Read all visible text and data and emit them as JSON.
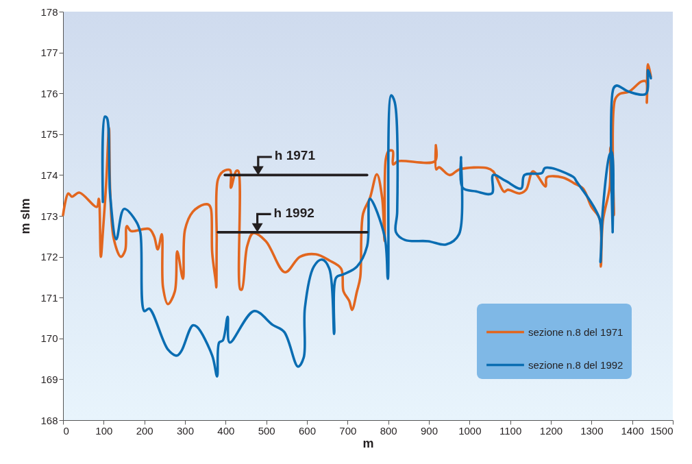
{
  "chart_data": {
    "type": "line",
    "xlabel": "m",
    "ylabel": "m slm",
    "xlim": [
      0,
      1500
    ],
    "ylim": [
      168,
      178
    ],
    "xticks": [
      0,
      100,
      200,
      300,
      400,
      500,
      600,
      700,
      800,
      900,
      1000,
      1100,
      1200,
      1300,
      1400,
      1500
    ],
    "yticks": [
      168,
      169,
      170,
      171,
      172,
      173,
      174,
      175,
      176,
      177,
      178
    ],
    "legend": "bottom right",
    "line_style": "solid",
    "annotations": [
      {
        "text": "h 1971",
        "x": 480,
        "y": 174.0
      },
      {
        "text": "h 1992",
        "x": 478,
        "y": 172.6
      }
    ],
    "series": [
      {
        "name": "sezione n.8 del 1971",
        "color": "#e2661f",
        "x": [
          0,
          13,
          22,
          40,
          83,
          88,
          93,
          98,
          106,
          113,
          116,
          125,
          142,
          153,
          157,
          167,
          212,
          224,
          233,
          243,
          246,
          258,
          275,
          281,
          295,
          300,
          319,
          347,
          359,
          364,
          367,
          376,
          377,
          378,
          381,
          394,
          411,
          413,
          426,
          431,
          436,
          440,
          453,
          468,
          499,
          546,
          583,
          622,
          655,
          684,
          690,
          704,
          711,
          723,
          731,
          738,
          755,
          772,
          785,
          791,
          794,
          801,
          811,
          812,
          824,
          915,
          917,
          918,
          925,
          951,
          976,
          1043,
          1058,
          1085,
          1094,
          1123,
          1139,
          1156,
          1187,
          1190,
          1229,
          1257,
          1279,
          1300,
          1320,
          1323,
          1328,
          1345,
          1347,
          1350,
          1355,
          1358,
          1370,
          1392,
          1423,
          1434,
          1436,
          1439,
          1446
        ],
        "values": [
          173.02,
          173.55,
          173.47,
          173.57,
          173.22,
          173.42,
          172.0,
          172.6,
          173.77,
          175.15,
          173.6,
          172.43,
          172.0,
          172.16,
          172.75,
          172.63,
          172.68,
          172.5,
          172.18,
          172.55,
          171.25,
          170.84,
          171.15,
          172.13,
          171.46,
          172.66,
          173.1,
          173.28,
          173.27,
          173.17,
          172.09,
          171.37,
          171.25,
          172.38,
          173.89,
          174.09,
          174.12,
          173.69,
          174.1,
          174.1,
          171.2,
          171.2,
          172.26,
          172.58,
          172.38,
          171.62,
          172.0,
          172.06,
          171.91,
          171.71,
          171.15,
          170.92,
          170.7,
          171.15,
          171.49,
          173.05,
          173.44,
          174.02,
          173.44,
          172.38,
          174.39,
          174.59,
          174.59,
          174.26,
          174.34,
          174.34,
          174.73,
          174.14,
          174.19,
          174.0,
          174.14,
          174.17,
          174.09,
          173.59,
          173.64,
          173.55,
          173.64,
          174.09,
          173.72,
          173.94,
          173.94,
          173.8,
          173.67,
          173.22,
          172.93,
          171.76,
          172.88,
          173.72,
          174.69,
          174.6,
          173.02,
          175.85,
          175.99,
          176.04,
          176.29,
          176.29,
          175.77,
          176.71,
          176.41
        ]
      },
      {
        "name": "sezione n.8 del 1992",
        "color": "#0a6db2",
        "x": [
          98,
          103,
          108,
          116,
          131,
          150,
          179,
          190,
          200,
          212,
          258,
          280,
          291,
          319,
          330,
          367,
          379,
          384,
          393,
          405,
          410,
          470,
          516,
          544,
          578,
          592,
          595,
          617,
          637,
          655,
          667,
          672,
          690,
          723,
          748,
          755,
          791,
          799,
          807,
          816,
          822,
          819,
          841,
          898,
          942,
          974,
          979,
          983,
          1016,
          1055,
          1058,
          1088,
          1127,
          1135,
          1178,
          1185,
          1202,
          1224,
          1257,
          1262,
          1320,
          1322,
          1328,
          1345,
          1350,
          1352,
          1354,
          1362,
          1392,
          1434,
          1439,
          1446
        ],
        "values": [
          173.34,
          175.43,
          175.4,
          173.5,
          172.43,
          173.17,
          172.88,
          172.6,
          170.67,
          170.73,
          169.73,
          169.58,
          169.69,
          170.32,
          170.28,
          169.58,
          169.07,
          169.9,
          169.95,
          170.53,
          169.9,
          170.67,
          170.33,
          170.16,
          169.31,
          169.53,
          170.75,
          171.76,
          171.93,
          171.71,
          170.11,
          171.49,
          171.57,
          171.76,
          172.26,
          173.42,
          172.5,
          171.46,
          175.95,
          175.78,
          173.1,
          172.6,
          172.41,
          172.38,
          172.3,
          172.55,
          174.44,
          173.69,
          173.6,
          173.55,
          174.0,
          173.86,
          173.67,
          174.0,
          174.05,
          174.17,
          174.17,
          174.1,
          173.94,
          173.86,
          172.92,
          171.87,
          173.17,
          174.51,
          174.56,
          172.6,
          176.12,
          176.19,
          176.04,
          175.99,
          176.57,
          176.37
        ]
      },
      {
        "color": "#231f20",
        "x": [
          398,
          748
        ],
        "values": [
          174.0,
          174.0
        ]
      },
      {
        "color": "#231f20",
        "x": [
          381,
          748
        ],
        "values": [
          172.6,
          172.6
        ]
      }
    ]
  }
}
